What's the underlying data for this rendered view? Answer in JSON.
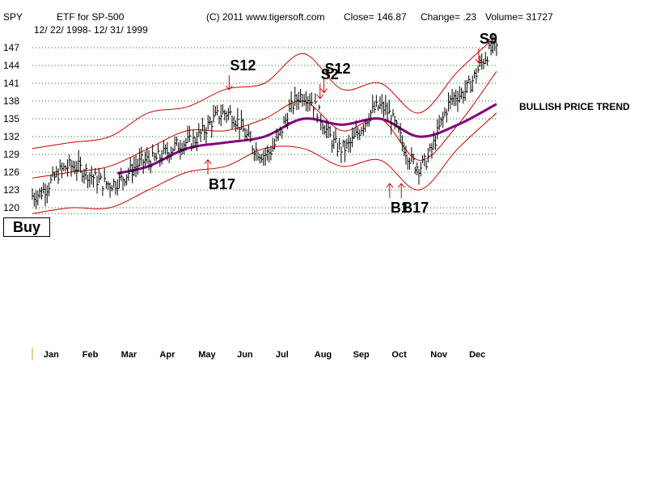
{
  "header": {
    "ticker": "SPY",
    "title": "ETF for SP-500",
    "date_range": "12/ 22/ 1998- 12/ 31/ 1999",
    "copyright": "(C) 2011 www.tigersoft.com",
    "close": "Close=  146.87",
    "change": "Change= .23",
    "volume": "Volume= 31727"
  },
  "buy_label": "Buy",
  "trend_label": "BULLISH PRICE TREND",
  "chart_data": {
    "type": "line",
    "title": "ETF for SP-500",
    "ylim": [
      119,
      149
    ],
    "y_ticks": [
      120,
      123,
      126,
      129,
      132,
      135,
      138,
      141,
      144,
      147
    ],
    "x_months": [
      "Jan",
      "Feb",
      "Mar",
      "Apr",
      "May",
      "Jun",
      "Jul",
      "Aug",
      "Sep",
      "Oct",
      "Nov",
      "Dec"
    ],
    "grid": true,
    "colors": {
      "price": "#000000",
      "bands": "#cc0000",
      "ma": "#800080",
      "grid": "#008000",
      "signals": "#cc0000"
    },
    "series": [
      {
        "key": "price",
        "x": [
          0,
          1,
          2,
          3,
          4,
          5,
          6,
          7,
          8,
          9,
          10,
          11,
          12
        ],
        "values": [
          122,
          127,
          124,
          128,
          131,
          136,
          129,
          139,
          130,
          137,
          127,
          139,
          147
        ]
      },
      {
        "key": "upper_band",
        "x": [
          0,
          1,
          2,
          3,
          4,
          5,
          6,
          7,
          8,
          9,
          10,
          11,
          12
        ],
        "values": [
          130,
          131,
          132,
          136,
          137,
          140,
          141,
          146,
          140,
          141,
          136,
          143,
          149
        ]
      },
      {
        "key": "lower_band",
        "x": [
          0,
          1,
          2,
          3,
          4,
          5,
          6,
          7,
          8,
          9,
          10,
          11,
          12
        ],
        "values": [
          119,
          120,
          120,
          123,
          126,
          127,
          130,
          130,
          127,
          128,
          123,
          130,
          136
        ]
      },
      {
        "key": "inner_band",
        "x": [
          0,
          1,
          2,
          3,
          4,
          5,
          6,
          7,
          8,
          9,
          10,
          11,
          12
        ],
        "values": [
          125,
          126,
          127,
          130,
          133,
          133,
          135,
          138,
          133,
          135,
          128,
          134,
          143
        ]
      },
      {
        "key": "moving_average",
        "x": [
          2.2,
          3,
          4,
          5,
          6,
          7,
          8,
          9,
          10,
          11,
          12
        ],
        "values": [
          125.8,
          127,
          130,
          131,
          132,
          135,
          134,
          135,
          132,
          134,
          137.5
        ]
      }
    ],
    "annotations": [
      {
        "text": "S12",
        "x": 5.15,
        "y": 144
      },
      {
        "text": "S12",
        "x": 7.6,
        "y": 143.5
      },
      {
        "text": "S2",
        "x": 7.5,
        "y": 142.5
      },
      {
        "text": "B17",
        "x": 4.6,
        "y": 124
      },
      {
        "text": "B1",
        "x": 9.3,
        "y": 120
      },
      {
        "text": "B17",
        "x": 9.6,
        "y": 120
      },
      {
        "text": "S9",
        "x": 11.6,
        "y": 148.5
      }
    ]
  }
}
